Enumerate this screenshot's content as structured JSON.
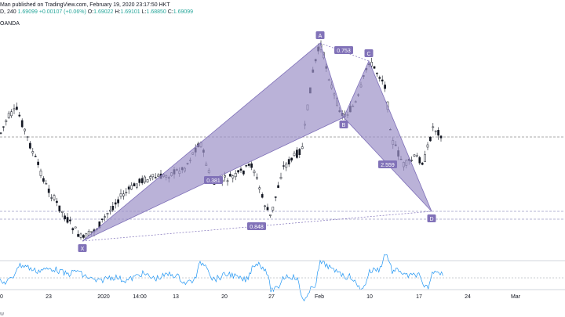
{
  "header": {
    "line1": "Man published on TradingView.com, February 19, 2020 23:17:50 HKT",
    "interval": "D, 240",
    "ohlc": [
      {
        "label": "O:",
        "value": "1.69022"
      },
      {
        "label": "H:",
        "value": "1.69101"
      },
      {
        "label": "L:",
        "value": "1.68850"
      },
      {
        "label": "C:",
        "value": "1.69099"
      }
    ],
    "last": "1.69099",
    "change": "+0.00107 (+0.06%)",
    "source": "OANDA"
  },
  "footer": {
    "text": "w"
  },
  "colors": {
    "pattern_fill": "#9c92c8",
    "pattern_edge": "#7e6fb8",
    "label_bg": "#8172b8",
    "candle": "#131722",
    "rsi_line": "#2196f3",
    "dashed": "#6f6fa8"
  },
  "chart_data": {
    "type": "candlestick",
    "title": "",
    "xlabel": "",
    "ylabel": "",
    "x_ticks": [
      "0",
      "23",
      "2020",
      "14:00",
      "13",
      "20",
      "27",
      "Feb",
      "10",
      "17",
      "24",
      "Mar"
    ],
    "harmonic_pattern": {
      "points": [
        {
          "name": "X",
          "index": 105,
          "price": 308
        },
        {
          "name": "A",
          "index": 408,
          "price": 55
        },
        {
          "name": "B",
          "index": 438,
          "price": 150
        },
        {
          "name": "C",
          "index": 470,
          "price": 78
        },
        {
          "name": "D",
          "index": 550,
          "price": 270
        }
      ],
      "ratios": [
        {
          "label": "0.381",
          "index": 272,
          "price": 230
        },
        {
          "label": "0.753",
          "index": 438,
          "price": 64
        },
        {
          "label": "2.559",
          "index": 494,
          "price": 210
        },
        {
          "label": "0.848",
          "index": 327,
          "price": 289
        }
      ]
    },
    "horizontal_levels": [
      175,
      270,
      280
    ],
    "rsi": {
      "mid": 352
    }
  }
}
